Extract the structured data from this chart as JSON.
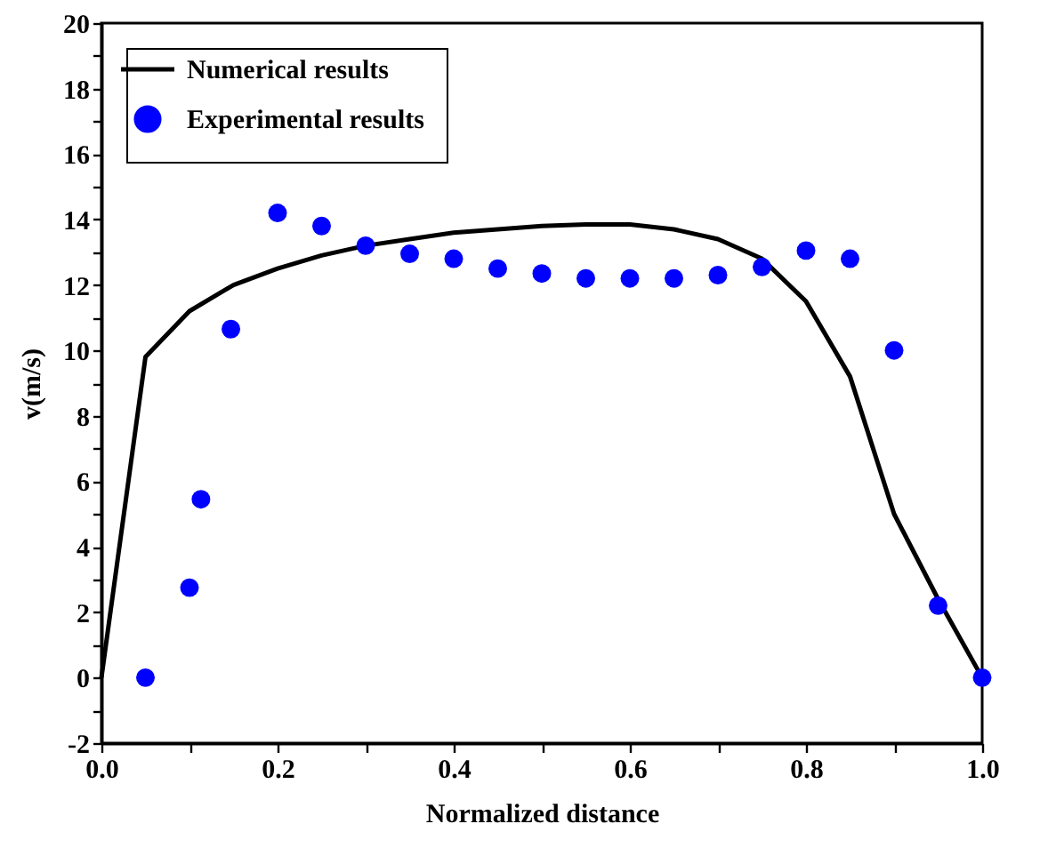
{
  "chart_data": {
    "type": "line",
    "xlabel": "Normalized distance",
    "ylabel": "v(m/s)",
    "xlim": [
      0,
      1
    ],
    "ylim": [
      -2,
      20
    ],
    "xticks": [
      {
        "value": 0,
        "label": "0.0"
      },
      {
        "value": 0.1,
        "label": null
      },
      0.2,
      {
        "value": 0.3,
        "label": null
      },
      0.4,
      {
        "value": 0.5,
        "label": null
      },
      0.6,
      {
        "value": 0.7,
        "label": null
      },
      0.8,
      {
        "value": 0.9,
        "label": null
      },
      {
        "value": 1,
        "label": "1.0"
      }
    ],
    "yticks": [
      -2,
      {
        "value": -1,
        "label": null
      },
      0,
      {
        "value": 1,
        "label": null
      },
      2,
      {
        "value": 3,
        "label": null
      },
      4,
      {
        "value": 5,
        "label": null
      },
      6,
      {
        "value": 7,
        "label": null
      },
      8,
      {
        "value": 9,
        "label": null
      },
      10,
      {
        "value": 11,
        "label": null
      },
      12,
      {
        "value": 13,
        "label": null
      },
      14,
      {
        "value": 15,
        "label": null
      },
      16,
      {
        "value": 17,
        "label": null
      },
      18,
      {
        "value": 19,
        "label": null
      },
      20
    ],
    "grid": false,
    "legend": "top left",
    "series": [
      {
        "name": "Numerical results",
        "color": "#000000",
        "line_style": "solid",
        "marker": "none",
        "x": [
          0,
          0.05,
          0.1,
          0.15,
          0.2,
          0.25,
          0.3,
          0.35,
          0.4,
          0.45,
          0.5,
          0.55,
          0.6,
          0.65,
          0.7,
          0.75,
          0.8,
          0.85,
          0.9,
          0.95,
          1.0
        ],
        "values": [
          0,
          9.8,
          11.2,
          12.0,
          12.5,
          12.9,
          13.2,
          13.4,
          13.6,
          13.7,
          13.8,
          13.85,
          13.85,
          13.7,
          13.4,
          12.8,
          11.5,
          9.2,
          5.0,
          2.4,
          0
        ]
      },
      {
        "name": "Experimental results",
        "type": "scatter",
        "color": "#0000ff",
        "marker": "circle",
        "x": [
          0.05,
          0.1,
          0.113,
          0.147,
          0.2,
          0.25,
          0.3,
          0.35,
          0.4,
          0.45,
          0.5,
          0.55,
          0.6,
          0.65,
          0.7,
          0.75,
          0.8,
          0.85,
          0.9,
          0.95,
          1.0
        ],
        "values": [
          0,
          2.75,
          5.45,
          10.65,
          14.2,
          13.8,
          13.2,
          12.95,
          12.8,
          12.5,
          12.35,
          12.2,
          12.2,
          12.2,
          12.3,
          12.55,
          13.05,
          12.8,
          10.0,
          2.2,
          0
        ]
      }
    ]
  }
}
